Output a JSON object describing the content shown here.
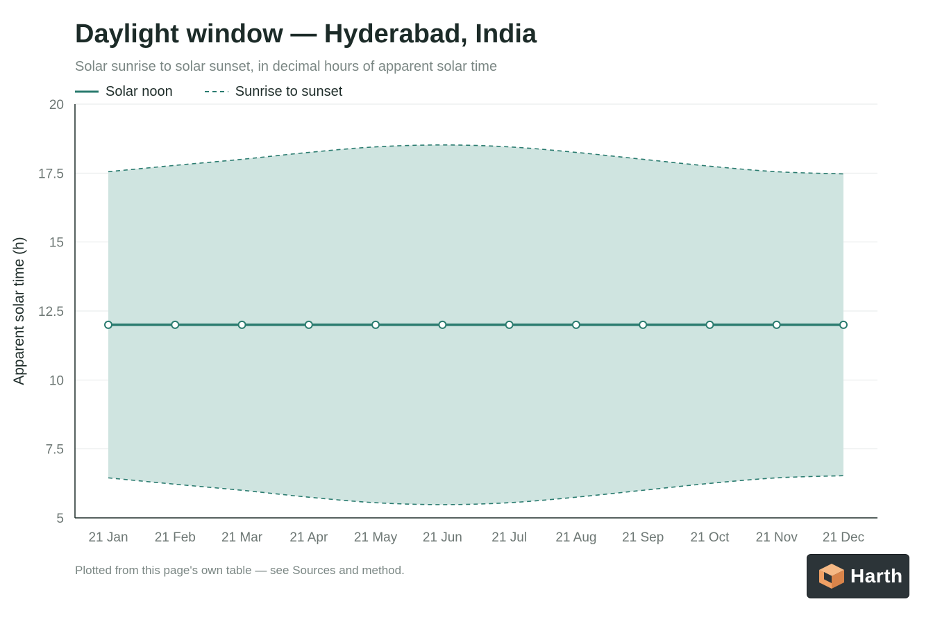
{
  "title": "Daylight window — Hyderabad, India",
  "subtitle": "Solar sunrise to solar sunset, in decimal hours of apparent solar time",
  "legend": {
    "noon_label": "Solar noon",
    "range_label": "Sunrise to sunset"
  },
  "footnote": "Plotted from this page's own table — see Sources and method.",
  "logo": {
    "text": "Harth",
    "icon": "cube-icon"
  },
  "colors": {
    "accent": "#2a7b6f",
    "band_fill": "#cfe4e0",
    "logo_orange": "#f0a064"
  },
  "chart_data": {
    "type": "line",
    "title": "Daylight window — Hyderabad, India",
    "xlabel": "",
    "ylabel": "Apparent solar time (h)",
    "categories": [
      "21 Jan",
      "21 Feb",
      "21 Mar",
      "21 Apr",
      "21 May",
      "21 Jun",
      "21 Jul",
      "21 Aug",
      "21 Sep",
      "21 Oct",
      "21 Nov",
      "21 Dec"
    ],
    "series": [
      {
        "name": "Solar noon",
        "style": "solid",
        "values": [
          12,
          12,
          12,
          12,
          12,
          12,
          12,
          12,
          12,
          12,
          12,
          12
        ]
      },
      {
        "name": "Sunrise to sunset",
        "style": "dashed",
        "sunrise": [
          6.45,
          6.22,
          6.0,
          5.75,
          5.55,
          5.48,
          5.55,
          5.75,
          6.0,
          6.25,
          6.45,
          6.53
        ],
        "sunset": [
          17.55,
          17.78,
          18.0,
          18.25,
          18.45,
          18.52,
          18.45,
          18.25,
          18.0,
          17.75,
          17.55,
          17.47
        ]
      }
    ],
    "yticks": [
      5,
      7.5,
      10,
      12.5,
      15,
      17.5,
      20
    ],
    "ytick_labels": [
      "5",
      "7.5",
      "10",
      "12.5",
      "15",
      "17.5",
      "20"
    ],
    "ylim": [
      5,
      20
    ],
    "grid": true,
    "legend_position": "top-left"
  }
}
